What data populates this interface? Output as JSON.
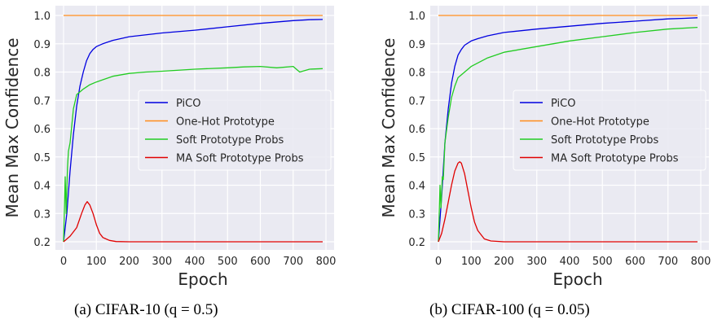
{
  "captions": [
    "(a) CIFAR-10 (q = 0.5)",
    "(b) CIFAR-100 (q = 0.05)"
  ],
  "colors": {
    "background": "#EAEAF2",
    "grid": "#FFFFFF",
    "PiCO": "#0000E0",
    "One-Hot Prototype": "#FF8C1A",
    "Soft Prototype Probs": "#22CC22",
    "MA Soft Prototype Probs": "#E00000"
  },
  "chart_data": [
    {
      "type": "line",
      "xlabel": "Epoch",
      "ylabel": "Mean Max Confidence",
      "xlim": [
        0,
        800
      ],
      "ylim": [
        0.2,
        1.0
      ],
      "xticks": [
        "0",
        "100",
        "200",
        "300",
        "400",
        "500",
        "600",
        "700",
        "800"
      ],
      "yticks": [
        "0.2",
        "0.3",
        "0.4",
        "0.5",
        "0.6",
        "0.7",
        "0.8",
        "0.9",
        "1.0"
      ],
      "grid": true,
      "legend_position": "center-right",
      "series": [
        {
          "name": "PiCO",
          "x": [
            0,
            10,
            20,
            30,
            40,
            50,
            60,
            70,
            80,
            90,
            100,
            120,
            150,
            200,
            300,
            400,
            500,
            600,
            700,
            750,
            790
          ],
          "y": [
            0.2,
            0.3,
            0.45,
            0.58,
            0.68,
            0.75,
            0.8,
            0.84,
            0.865,
            0.88,
            0.89,
            0.9,
            0.912,
            0.925,
            0.938,
            0.948,
            0.96,
            0.972,
            0.982,
            0.985,
            0.986
          ]
        },
        {
          "name": "One-Hot Prototype",
          "x": [
            0,
            790
          ],
          "y": [
            1.0,
            1.0
          ]
        },
        {
          "name": "Soft Prototype Probs",
          "x": [
            0,
            5,
            8,
            12,
            15,
            20,
            30,
            40,
            60,
            80,
            100,
            150,
            200,
            250,
            300,
            400,
            500,
            550,
            600,
            650,
            700,
            720,
            750,
            790
          ],
          "y": [
            0.2,
            0.43,
            0.3,
            0.46,
            0.52,
            0.55,
            0.67,
            0.72,
            0.74,
            0.755,
            0.765,
            0.785,
            0.795,
            0.8,
            0.803,
            0.81,
            0.815,
            0.818,
            0.82,
            0.815,
            0.82,
            0.8,
            0.81,
            0.812
          ]
        },
        {
          "name": "MA Soft Prototype Probs",
          "x": [
            0,
            20,
            40,
            55,
            65,
            72,
            80,
            90,
            100,
            110,
            120,
            140,
            160,
            200,
            300,
            790
          ],
          "y": [
            0.2,
            0.22,
            0.25,
            0.3,
            0.33,
            0.342,
            0.33,
            0.3,
            0.26,
            0.23,
            0.215,
            0.205,
            0.201,
            0.2,
            0.2,
            0.2
          ]
        }
      ]
    },
    {
      "type": "line",
      "xlabel": "Epoch",
      "ylabel": "Mean Max Confidence",
      "xlim": [
        0,
        800
      ],
      "ylim": [
        0.2,
        1.0
      ],
      "xticks": [
        "0",
        "100",
        "200",
        "300",
        "400",
        "500",
        "600",
        "700",
        "800"
      ],
      "yticks": [
        "0.2",
        "0.3",
        "0.4",
        "0.5",
        "0.6",
        "0.7",
        "0.8",
        "0.9",
        "1.0"
      ],
      "grid": true,
      "legend_position": "center-right",
      "series": [
        {
          "name": "PiCO",
          "x": [
            0,
            10,
            20,
            30,
            40,
            50,
            60,
            70,
            80,
            100,
            120,
            150,
            200,
            300,
            400,
            500,
            600,
            700,
            750,
            790
          ],
          "y": [
            0.2,
            0.36,
            0.55,
            0.67,
            0.76,
            0.82,
            0.86,
            0.88,
            0.895,
            0.91,
            0.918,
            0.928,
            0.94,
            0.952,
            0.962,
            0.972,
            0.98,
            0.988,
            0.99,
            0.992
          ]
        },
        {
          "name": "One-Hot Prototype",
          "x": [
            0,
            790
          ],
          "y": [
            1.0,
            1.0
          ]
        },
        {
          "name": "Soft Prototype Probs",
          "x": [
            0,
            5,
            8,
            12,
            15,
            20,
            30,
            40,
            50,
            60,
            80,
            100,
            150,
            200,
            300,
            400,
            500,
            600,
            700,
            790
          ],
          "y": [
            0.2,
            0.4,
            0.32,
            0.43,
            0.42,
            0.55,
            0.64,
            0.71,
            0.75,
            0.78,
            0.8,
            0.82,
            0.85,
            0.87,
            0.89,
            0.91,
            0.925,
            0.94,
            0.952,
            0.958
          ]
        },
        {
          "name": "MA Soft Prototype Probs",
          "x": [
            0,
            10,
            20,
            30,
            40,
            50,
            60,
            65,
            70,
            80,
            90,
            100,
            110,
            120,
            140,
            160,
            200,
            250,
            790
          ],
          "y": [
            0.2,
            0.23,
            0.28,
            0.34,
            0.4,
            0.45,
            0.478,
            0.483,
            0.478,
            0.44,
            0.38,
            0.32,
            0.27,
            0.24,
            0.21,
            0.203,
            0.2,
            0.2,
            0.2
          ]
        }
      ]
    }
  ]
}
